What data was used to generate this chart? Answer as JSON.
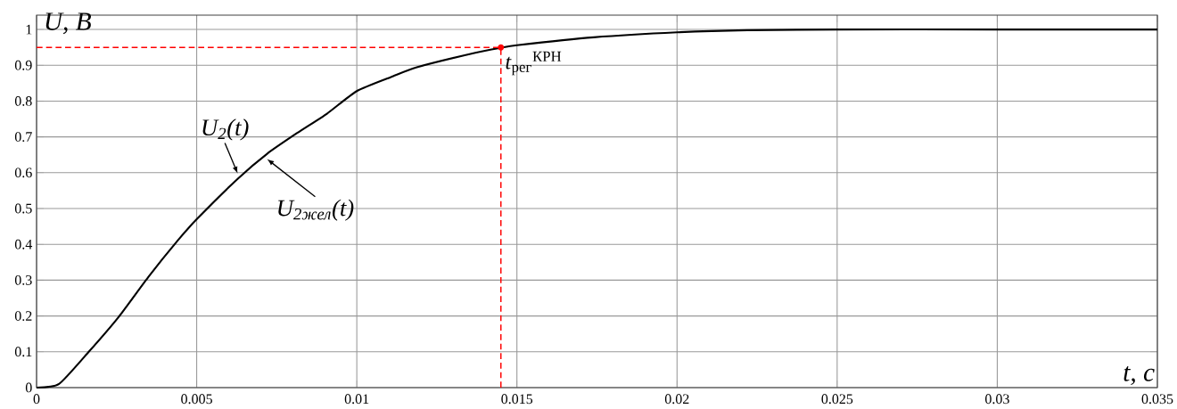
{
  "chart_data": {
    "type": "line",
    "xlabel": "t, c",
    "ylabel": "U, B",
    "x": [
      0,
      0.0007,
      0.00163,
      0.00256,
      0.00349,
      0.00442,
      0.005,
      0.00628,
      0.0072,
      0.00814,
      0.00907,
      0.01,
      0.01112,
      0.01185,
      0.0137,
      0.01451,
      0.015,
      0.0174,
      0.02,
      0.0222,
      0.025,
      0.03,
      0.035
    ],
    "series": [
      {
        "color": "#000000",
        "values": [
          0,
          0.01,
          0.1,
          0.197,
          0.309,
          0.412,
          0.47,
          0.583,
          0.653,
          0.711,
          0.765,
          0.828,
          0.869,
          0.894,
          0.935,
          0.949,
          0.956,
          0.978,
          0.992,
          0.998,
          1.0,
          1.0,
          1.0
        ]
      }
    ],
    "annotations": [
      {
        "text": "U$_{2}$(t)",
        "x": 0.00628,
        "y": 0.583
      },
      {
        "text": "U$_{2жел}$(t)",
        "x": 0.0072,
        "y": 0.653
      }
    ],
    "ref_lines": [
      {
        "axis": "y",
        "value": 0.95,
        "color": "#ff0000",
        "line_style": "dashed"
      },
      {
        "axis": "x",
        "value": 0.0145,
        "label": "*t*$_{рег}$$^{КРН}$",
        "color": "#ff0000",
        "line_style": "dashed"
      }
    ],
    "xlim": [
      0,
      0.035
    ],
    "ylim": [
      0,
      1.04
    ],
    "xticks": [
      0,
      0.005,
      0.01,
      0.015,
      0.02,
      0.025,
      0.03,
      0.035
    ],
    "yticks": [
      0,
      0.1,
      0.2,
      0.3,
      0.4,
      0.5,
      0.6,
      0.7,
      0.8,
      0.9,
      1
    ],
    "grid": true,
    "marker": "none",
    "line_style": "solid"
  }
}
